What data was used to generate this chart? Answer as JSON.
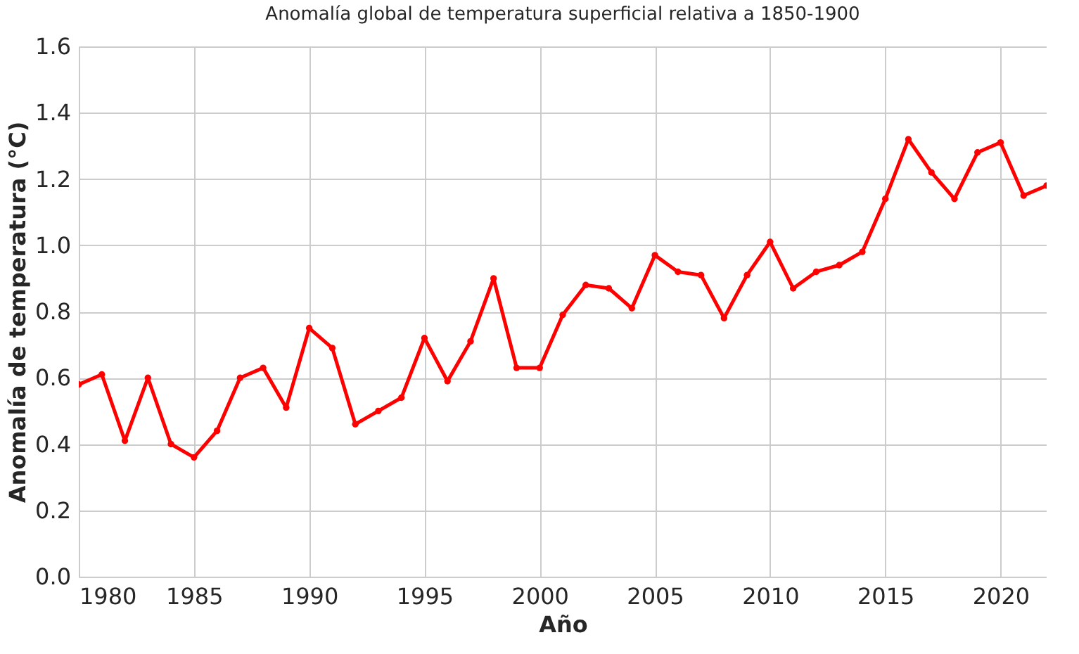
{
  "chart_data": {
    "type": "line",
    "title": "Anomalía global de temperatura superficial relativa a 1850-1900",
    "xlabel": "Año",
    "ylabel": "Anomalía de temperatura (°C)",
    "x": [
      1980,
      1981,
      1982,
      1983,
      1984,
      1985,
      1986,
      1987,
      1988,
      1989,
      1990,
      1991,
      1992,
      1993,
      1994,
      1995,
      1996,
      1997,
      1998,
      1999,
      2000,
      2001,
      2002,
      2003,
      2004,
      2005,
      2006,
      2007,
      2008,
      2009,
      2010,
      2011,
      2012,
      2013,
      2014,
      2015,
      2016,
      2017,
      2018,
      2019,
      2020,
      2021,
      2022
    ],
    "series": [
      {
        "color": "#ff0000",
        "values": [
          0.58,
          0.61,
          0.41,
          0.6,
          0.4,
          0.36,
          0.44,
          0.6,
          0.63,
          0.51,
          0.75,
          0.69,
          0.46,
          0.5,
          0.54,
          0.72,
          0.59,
          0.71,
          0.9,
          0.63,
          0.63,
          0.79,
          0.88,
          0.87,
          0.81,
          0.97,
          0.92,
          0.91,
          0.78,
          0.91,
          1.01,
          0.87,
          0.92,
          0.94,
          0.98,
          1.14,
          1.32,
          1.22,
          1.14,
          1.28,
          1.31,
          1.15,
          1.18
        ]
      }
    ],
    "xlim": [
      1980,
      2022
    ],
    "xticks": [
      1980,
      1985,
      1990,
      1995,
      2000,
      2005,
      2010,
      2015,
      2020
    ],
    "ylim": [
      0,
      1.6
    ],
    "yticks": [
      {
        "value": 0,
        "label": "0.0"
      },
      0.2,
      0.4,
      0.6,
      0.8,
      {
        "value": 1,
        "label": "1.0"
      },
      1.2,
      1.4,
      1.6
    ],
    "grid": true,
    "marker": "circle",
    "line_style": "solid"
  }
}
